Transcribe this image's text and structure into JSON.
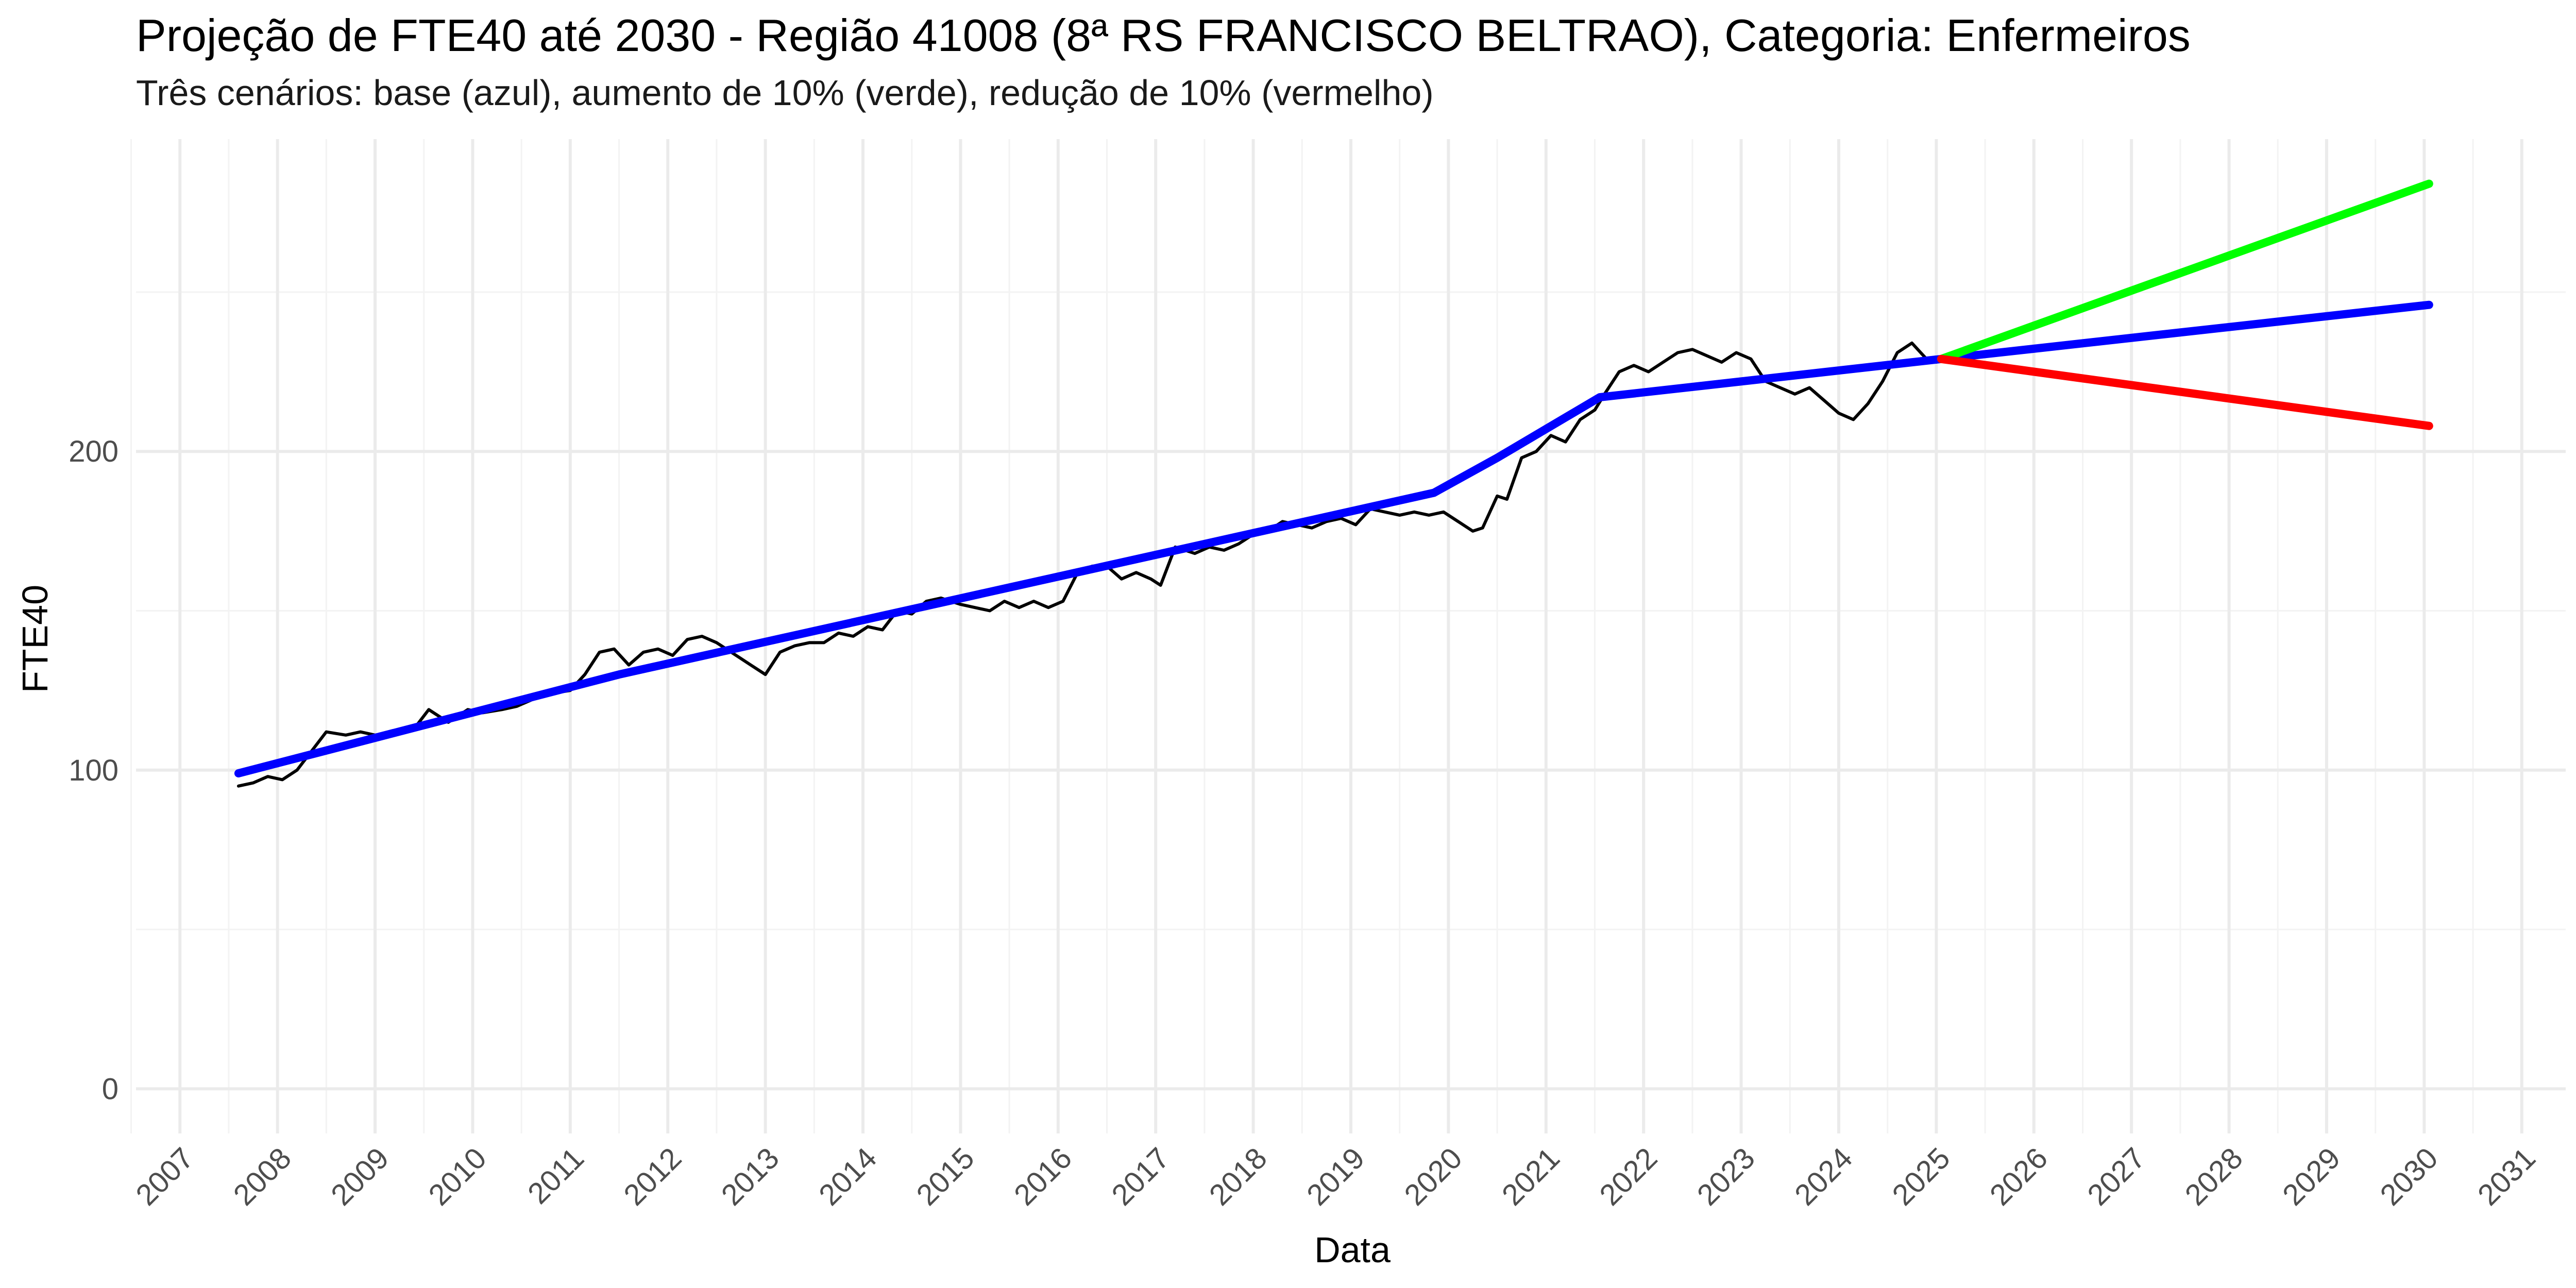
{
  "chart_data": {
    "type": "line",
    "title": "Projeção de FTE40 até 2030 - Região 41008 (8ª RS FRANCISCO BELTRAO), Categoria: Enfermeiros",
    "subtitle": "Três cenários: base (azul), aumento de 10% (verde), redução de 10% (vermelho)",
    "xlabel": "Data",
    "ylabel": "FTE40",
    "xlim": [
      2006.55,
      2031.45
    ],
    "ylim": [
      -14,
      298
    ],
    "y_ticks": [
      0,
      100,
      200
    ],
    "y_tick_labels": [
      "0",
      "100",
      "200"
    ],
    "x_ticks": [
      2007,
      2008,
      2009,
      2010,
      2011,
      2012,
      2013,
      2014,
      2015,
      2016,
      2017,
      2018,
      2019,
      2020,
      2021,
      2022,
      2023,
      2024,
      2025,
      2026,
      2027,
      2028,
      2029,
      2030,
      2031
    ],
    "x_tick_labels": [
      "2007",
      "2008",
      "2009",
      "2010",
      "2011",
      "2012",
      "2013",
      "2014",
      "2015",
      "2016",
      "2017",
      "2018",
      "2019",
      "2020",
      "2021",
      "2022",
      "2023",
      "2024",
      "2025",
      "2026",
      "2027",
      "2028",
      "2029",
      "2030",
      "2031"
    ],
    "grid": true,
    "series": [
      {
        "color": "#000000",
        "x": [
          2007.6,
          2007.75,
          2007.9,
          2008.05,
          2008.2,
          2008.35,
          2008.5,
          2008.7,
          2008.85,
          2009.0,
          2009.2,
          2009.4,
          2009.55,
          2009.75,
          2009.95,
          2010.1,
          2010.3,
          2010.45,
          2010.6,
          2010.8,
          2011.0,
          2011.15,
          2011.3,
          2011.45,
          2011.6,
          2011.75,
          2011.9,
          2012.05,
          2012.2,
          2012.35,
          2012.5,
          2012.7,
          2012.85,
          2013.0,
          2013.15,
          2013.3,
          2013.45,
          2013.6,
          2013.75,
          2013.9,
          2014.05,
          2014.2,
          2014.35,
          2014.5,
          2014.65,
          2014.8,
          2015.0,
          2015.15,
          2015.3,
          2015.45,
          2015.6,
          2015.75,
          2015.9,
          2016.05,
          2016.2,
          2016.35,
          2016.5,
          2016.65,
          2016.8,
          2016.95,
          2017.05,
          2017.2,
          2017.4,
          2017.55,
          2017.7,
          2017.85,
          2018.0,
          2018.15,
          2018.3,
          2018.45,
          2018.6,
          2018.75,
          2018.9,
          2019.05,
          2019.2,
          2019.35,
          2019.5,
          2019.65,
          2019.8,
          2019.95,
          2020.1,
          2020.25,
          2020.35,
          2020.5,
          2020.6,
          2020.75,
          2020.9,
          2021.05,
          2021.2,
          2021.35,
          2021.5,
          2021.6,
          2021.75,
          2021.9,
          2022.05,
          2022.2,
          2022.35,
          2022.5,
          2022.65,
          2022.8,
          2022.95,
          2023.1,
          2023.25,
          2023.4,
          2023.55,
          2023.7,
          2023.85,
          2024.0,
          2024.15,
          2024.3,
          2024.45,
          2024.6,
          2024.75,
          2024.9,
          2025.0
        ],
        "values": [
          95,
          96,
          98,
          97,
          100,
          106,
          112,
          111,
          112,
          111,
          112,
          113,
          119,
          115,
          119,
          118,
          119,
          120,
          122,
          124,
          125,
          130,
          137,
          138,
          133,
          137,
          138,
          136,
          141,
          142,
          140,
          136,
          133,
          130,
          137,
          139,
          140,
          140,
          143,
          142,
          145,
          144,
          150,
          149,
          153,
          154,
          152,
          151,
          150,
          153,
          151,
          153,
          151,
          153,
          162,
          164,
          164,
          160,
          162,
          160,
          158,
          170,
          168,
          170,
          169,
          171,
          174,
          175,
          178,
          177,
          176,
          178,
          179,
          177,
          182,
          181,
          180,
          181,
          180,
          181,
          178,
          175,
          176,
          186,
          185,
          198,
          200,
          205,
          203,
          210,
          213,
          218,
          225,
          227,
          225,
          228,
          231,
          232,
          230,
          228,
          231,
          229,
          222,
          220,
          218,
          220,
          216,
          212,
          210,
          215,
          222,
          231,
          234,
          229,
          228
        ]
      },
      {
        "color": "#0000ff",
        "x": [
          2007.6,
          2011.5,
          2019.85,
          2020.5,
          2021.55,
          2025.05,
          2030.05
        ],
        "values": [
          99,
          130,
          187,
          198,
          217,
          229,
          246
        ]
      },
      {
        "color": "#00ff00",
        "x": [
          2025.05,
          2030.05
        ],
        "values": [
          229,
          284
        ]
      },
      {
        "color": "#ff0000",
        "x": [
          2025.05,
          2030.05
        ],
        "values": [
          229,
          208
        ]
      }
    ]
  }
}
